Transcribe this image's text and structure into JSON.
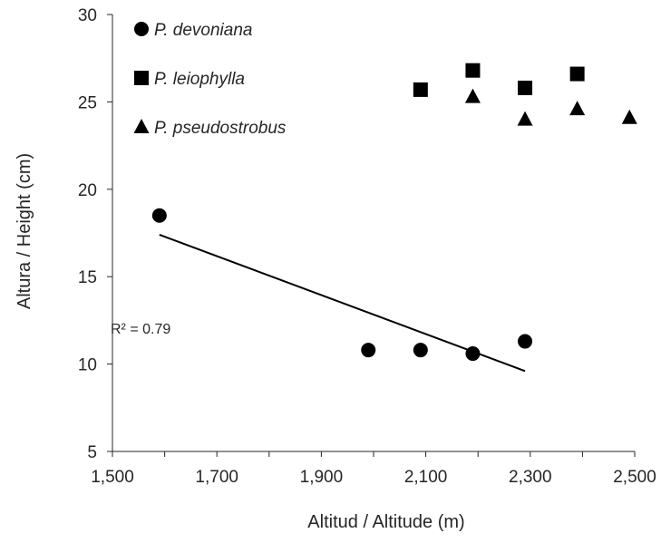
{
  "chart_data": {
    "type": "scatter",
    "title": "",
    "xlabel": "Altitud / Altitude (m)",
    "ylabel": "Altura / Height (cm)",
    "xlim": [
      1500,
      2500
    ],
    "ylim": [
      5,
      30
    ],
    "xticks": [
      1500,
      1700,
      1900,
      2100,
      2300,
      2500
    ],
    "xtick_labels": [
      "1,500",
      "1,700",
      "1,900",
      "2,100",
      "2,300",
      "2,500"
    ],
    "yticks": [
      5,
      10,
      15,
      20,
      25,
      30
    ],
    "ytick_labels": [
      "5",
      "10",
      "15",
      "20",
      "25",
      "30"
    ],
    "grid": false,
    "legend_position": "top-left",
    "series": [
      {
        "name": "P. devoniana",
        "marker": "circle",
        "color": "#000000",
        "points": [
          [
            1590,
            18.5
          ],
          [
            1990,
            10.8
          ],
          [
            2090,
            10.8
          ],
          [
            2190,
            10.6
          ],
          [
            2290,
            11.3
          ]
        ]
      },
      {
        "name": "P. leiophylla",
        "marker": "square",
        "color": "#000000",
        "points": [
          [
            2090,
            25.7
          ],
          [
            2190,
            26.8
          ],
          [
            2290,
            25.8
          ],
          [
            2390,
            26.6
          ]
        ]
      },
      {
        "name": "P. pseudostrobus",
        "marker": "triangle",
        "color": "#000000",
        "points": [
          [
            2190,
            25.3
          ],
          [
            2290,
            24.0
          ],
          [
            2390,
            24.6
          ],
          [
            2490,
            24.1
          ]
        ]
      }
    ],
    "trendline": {
      "series": "P. devoniana",
      "from": [
        1590,
        17.4
      ],
      "to": [
        2290,
        9.6
      ],
      "label": "R² = 0.79"
    }
  }
}
